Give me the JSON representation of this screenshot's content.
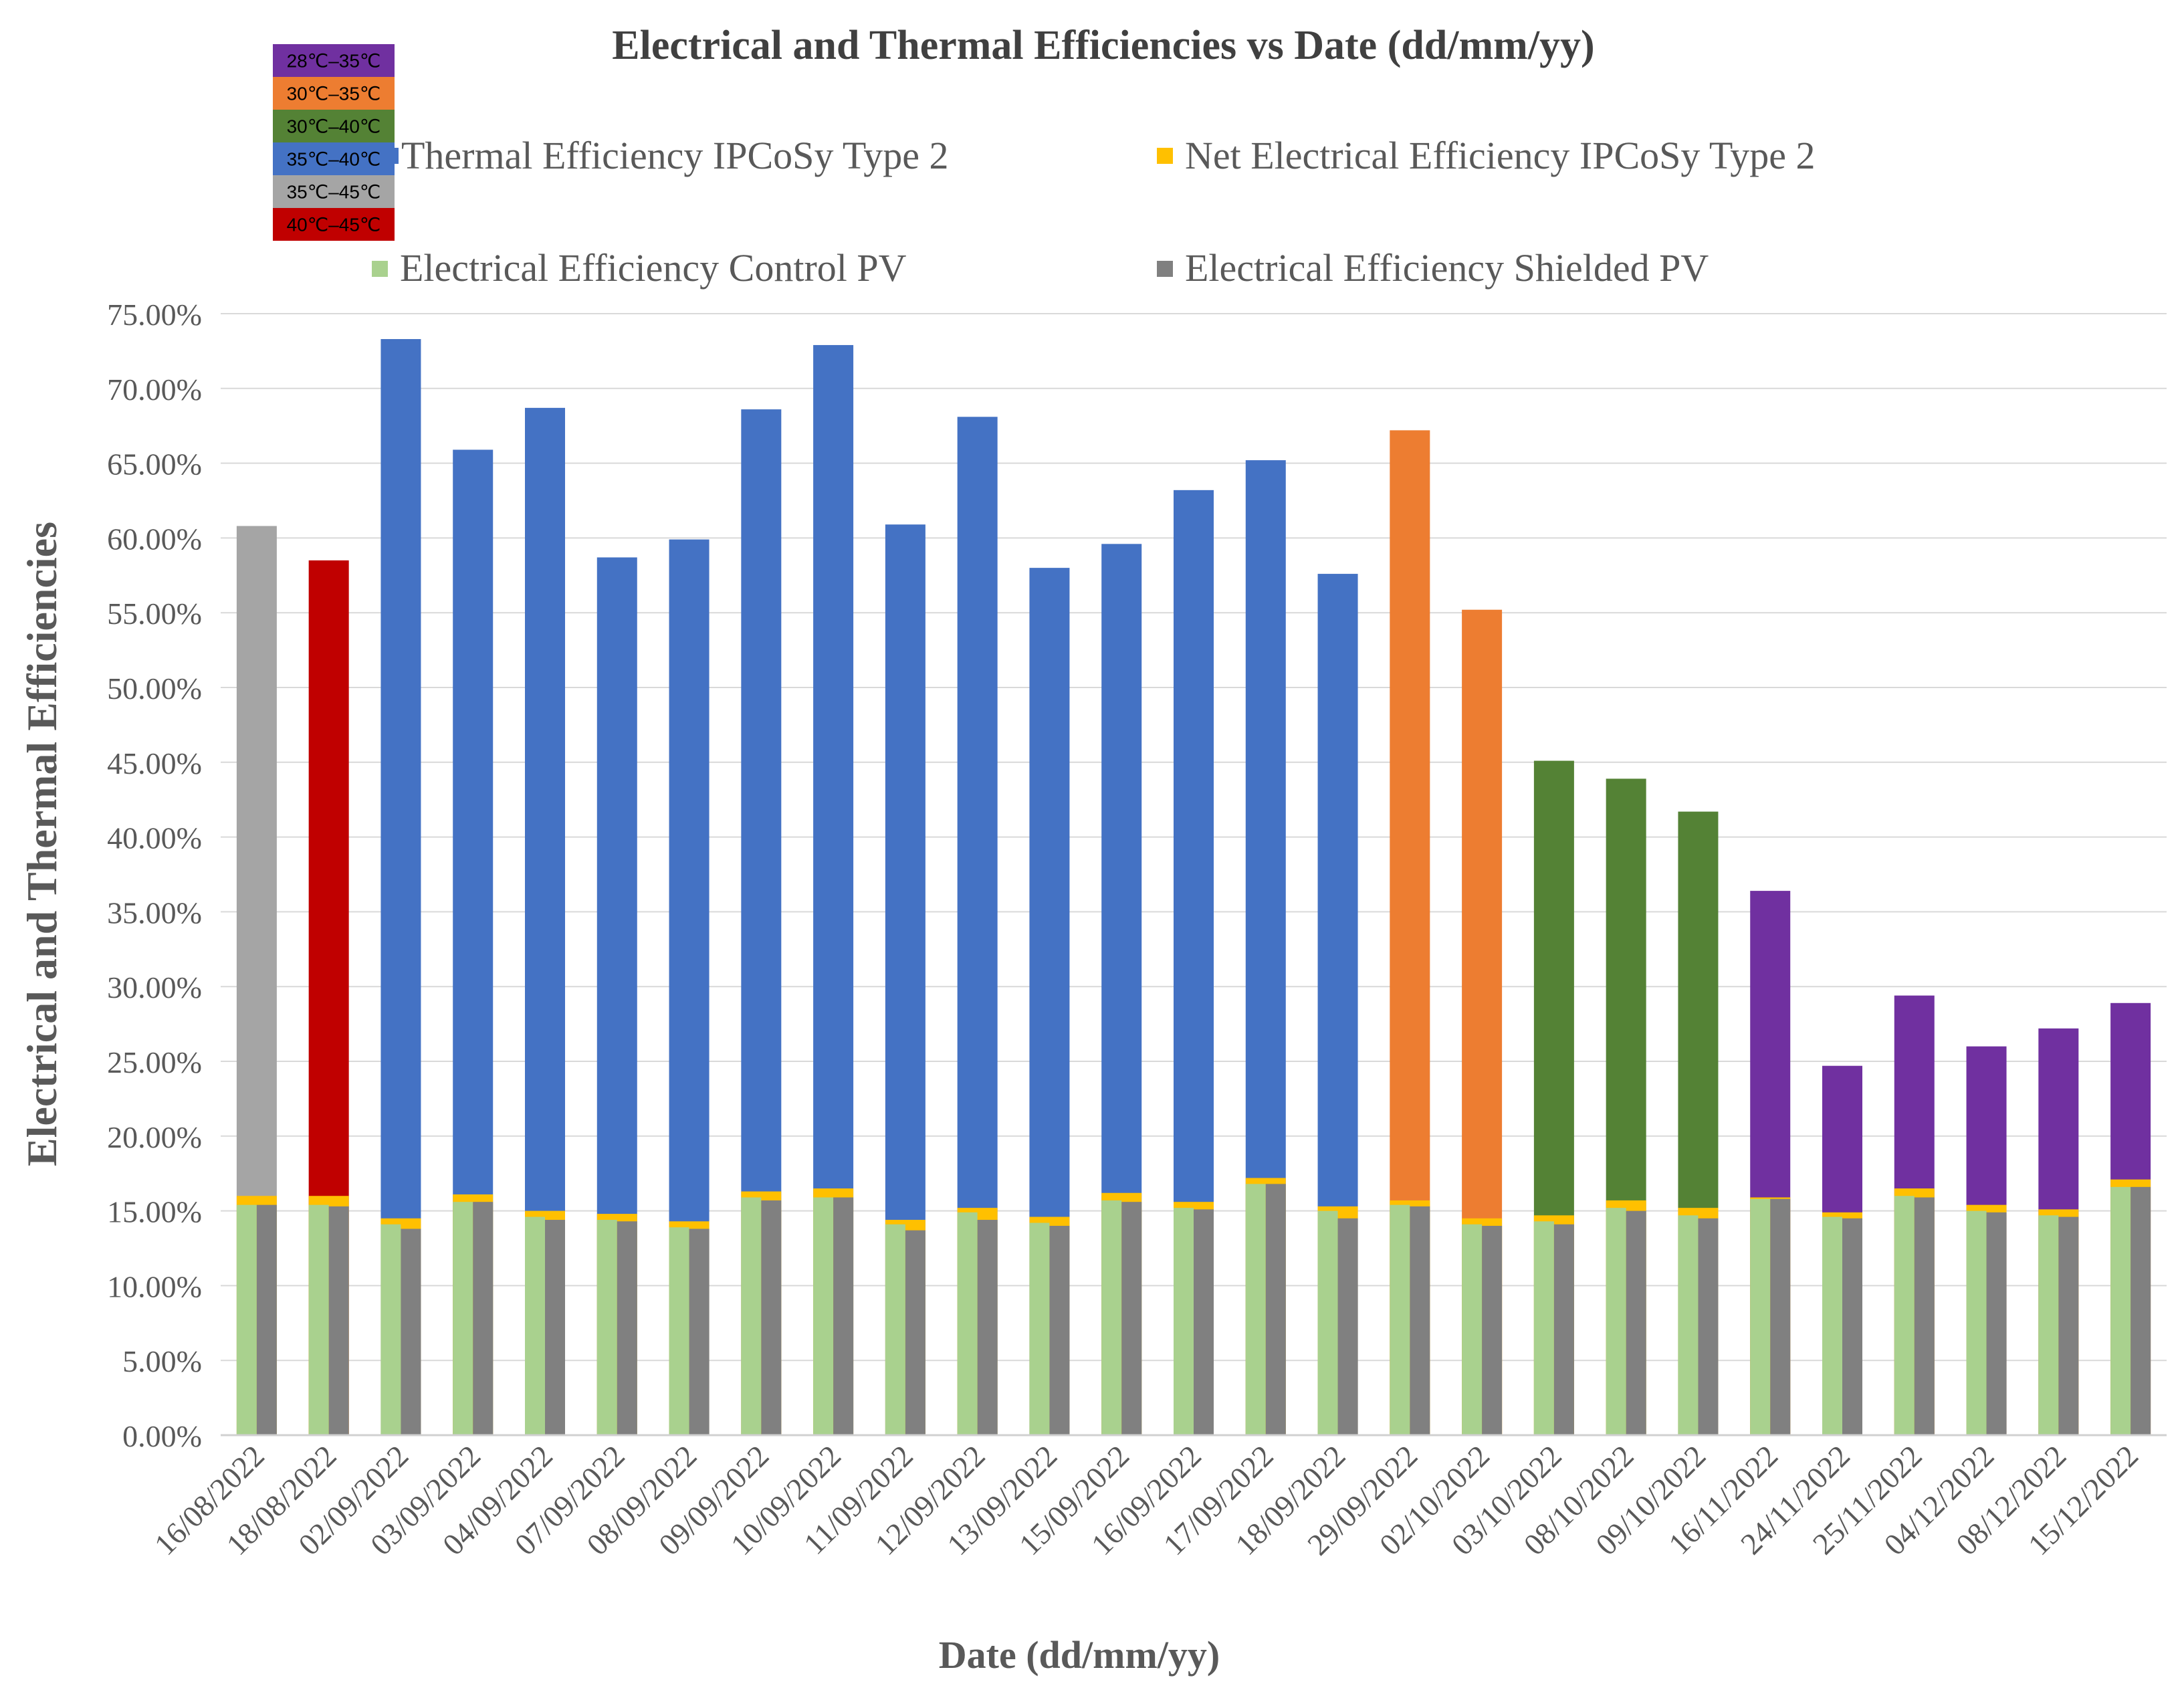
{
  "chart_data": {
    "type": "bar",
    "title": "Electrical and Thermal Efficiencies vs Date (dd/mm/yy)",
    "xlabel": "Date (dd/mm/yy)",
    "ylabel": "Electrical and Thermal Efficiencies",
    "ylim": [
      0,
      75
    ],
    "ytick_step": 5,
    "ytick_format": "percent_2dp",
    "grid": true,
    "categories": [
      "16/08/2022",
      "18/08/2022",
      "02/09/2022",
      "03/09/2022",
      "04/09/2022",
      "07/09/2022",
      "08/09/2022",
      "09/09/2022",
      "10/09/2022",
      "11/09/2022",
      "12/09/2022",
      "13/09/2022",
      "15/09/2022",
      "16/09/2022",
      "17/09/2022",
      "18/09/2022",
      "29/09/2022",
      "02/10/2022",
      "03/10/2022",
      "08/10/2022",
      "09/10/2022",
      "16/11/2022",
      "24/11/2022",
      "25/11/2022",
      "04/12/2022",
      "08/12/2022",
      "15/12/2022"
    ],
    "series": [
      {
        "name": "Thermal Efficiency IPCoSy Type 2",
        "color": "#4472C4",
        "values": [
          60.8,
          58.5,
          73.3,
          65.9,
          68.7,
          58.7,
          59.9,
          68.6,
          72.9,
          60.9,
          68.1,
          58.0,
          59.6,
          63.2,
          65.2,
          57.6,
          67.2,
          55.2,
          45.1,
          43.9,
          41.7,
          36.4,
          24.7,
          29.4,
          26.0,
          27.2,
          28.9
        ]
      },
      {
        "name": "Net Electrical Efficiency IPCoSy Type 2",
        "color": "#FFC000",
        "values": [
          16.0,
          16.0,
          14.5,
          16.1,
          15.0,
          14.8,
          14.3,
          16.3,
          16.5,
          14.4,
          15.2,
          14.6,
          16.2,
          15.6,
          17.2,
          15.3,
          15.7,
          14.5,
          14.7,
          15.7,
          15.2,
          15.9,
          14.9,
          16.5,
          15.4,
          15.1,
          17.1
        ]
      },
      {
        "name": "Electrical Efficiency Control PV",
        "color": "#A9D18E",
        "values": [
          15.4,
          15.4,
          14.1,
          15.6,
          14.6,
          14.4,
          13.9,
          15.9,
          15.9,
          14.1,
          14.9,
          14.2,
          15.7,
          15.2,
          16.8,
          15.0,
          15.4,
          14.1,
          14.3,
          15.2,
          14.7,
          15.8,
          14.6,
          16.0,
          15.0,
          14.7,
          16.6
        ]
      },
      {
        "name": "Electrical Efficiency Shielded PV",
        "color": "#808080",
        "values": [
          15.4,
          15.3,
          13.8,
          15.6,
          14.4,
          14.3,
          13.8,
          15.7,
          15.9,
          13.7,
          14.4,
          14.0,
          15.6,
          15.1,
          16.8,
          14.5,
          15.3,
          14.0,
          14.1,
          15.0,
          14.5,
          15.8,
          14.5,
          15.9,
          14.9,
          14.6,
          16.6
        ]
      }
    ],
    "thermal_bar_colors": [
      "#A5A5A5",
      "#C00000",
      "#4472C4",
      "#4472C4",
      "#4472C4",
      "#4472C4",
      "#4472C4",
      "#4472C4",
      "#4472C4",
      "#4472C4",
      "#4472C4",
      "#4472C4",
      "#4472C4",
      "#4472C4",
      "#4472C4",
      "#4472C4",
      "#ED7D31",
      "#ED7D31",
      "#548235",
      "#548235",
      "#548235",
      "#7030A0",
      "#7030A0",
      "#7030A0",
      "#7030A0",
      "#7030A0",
      "#7030A0"
    ],
    "temperature_legend": [
      {
        "label": "28℃–35℃",
        "color": "#7030A0",
        "text_color": "#000000"
      },
      {
        "label": "30℃–35℃",
        "color": "#ED7D31",
        "text_color": "#000000"
      },
      {
        "label": "30℃–40℃",
        "color": "#548235",
        "text_color": "#000000"
      },
      {
        "label": "35℃–40℃",
        "color": "#4472C4",
        "text_color": "#000000"
      },
      {
        "label": "35℃–45℃",
        "color": "#A5A5A5",
        "text_color": "#000000"
      },
      {
        "label": "40℃–45℃",
        "color": "#C00000",
        "text_color": "#000000"
      }
    ],
    "legend": [
      {
        "label": "Thermal Efficiency IPCoSy Type 2",
        "color": "#4472C4"
      },
      {
        "label": "Net Electrical Efficiency IPCoSy Type 2",
        "color": "#FFC000"
      },
      {
        "label": "Electrical Efficiency Control PV",
        "color": "#A9D18E"
      },
      {
        "label": "Electrical Efficiency Shielded PV",
        "color": "#808080"
      }
    ]
  }
}
